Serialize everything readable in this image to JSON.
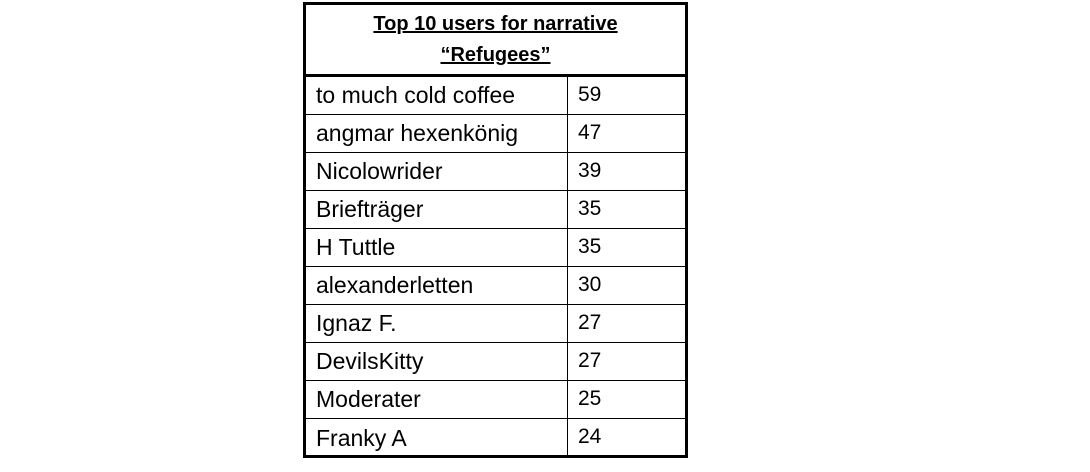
{
  "table": {
    "title_line1": "Top 10 users for narrative",
    "title_line2": "“Refugees”",
    "rows": [
      {
        "name": "to much cold coffee",
        "count": "59"
      },
      {
        "name": "angmar hexenkönig",
        "count": "47"
      },
      {
        "name": "Nicolowrider",
        "count": "39"
      },
      {
        "name": "Briefträger",
        "count": "35"
      },
      {
        "name": "H Tuttle",
        "count": "35"
      },
      {
        "name": "alexanderletten",
        "count": "30"
      },
      {
        "name": "Ignaz F.",
        "count": "27"
      },
      {
        "name": "DevilsKitty",
        "count": "27"
      },
      {
        "name": "Moderater",
        "count": "25"
      },
      {
        "name": "Franky A",
        "count": "24"
      }
    ]
  }
}
